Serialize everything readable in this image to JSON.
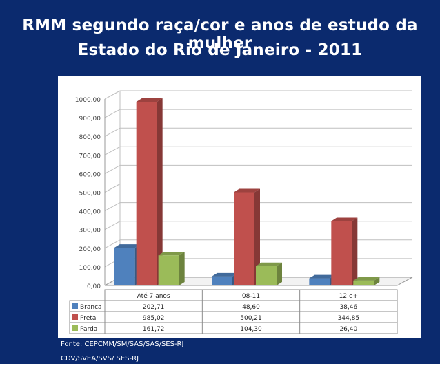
{
  "header": {
    "title_line1": "RMM segundo raça/cor e  anos de estudo da mulher",
    "title_line2": "Estado do Rio de Janeiro - 2011"
  },
  "footer": {
    "source_line1": "Fonte: CEPCMM/SM/SAS/SAS/SES-RJ",
    "source_line2": "CDV/SVEA/SVS/ SES-RJ"
  },
  "colors": {
    "background": "#0b2a6e",
    "branca": "#4f81bd",
    "preta": "#c0504d",
    "parda": "#9bbb59"
  },
  "chart_data": {
    "type": "bar",
    "categories": [
      "Até 7 anos",
      "08-11",
      "12 e+"
    ],
    "series": [
      {
        "name": "Branca",
        "values": [
          202.71,
          48.6,
          38.46
        ],
        "labels": [
          "202,71",
          "48,60",
          "38,46"
        ],
        "color": "#4f81bd"
      },
      {
        "name": "Preta",
        "values": [
          985.02,
          500.21,
          344.85
        ],
        "labels": [
          "985,02",
          "500,21",
          "344,85"
        ],
        "color": "#c0504d"
      },
      {
        "name": "Parda",
        "values": [
          161.72,
          104.3,
          26.4
        ],
        "labels": [
          "161,72",
          "104,30",
          "26,40"
        ],
        "color": "#9bbb59"
      }
    ],
    "ylim": [
      0,
      1000
    ],
    "yticks": [
      "0,00",
      "100,00",
      "200,00",
      "300,00",
      "400,00",
      "500,00",
      "600,00",
      "700,00",
      "800,00",
      "900,00",
      "1000,00"
    ],
    "grid": true,
    "legend": "data-table"
  }
}
